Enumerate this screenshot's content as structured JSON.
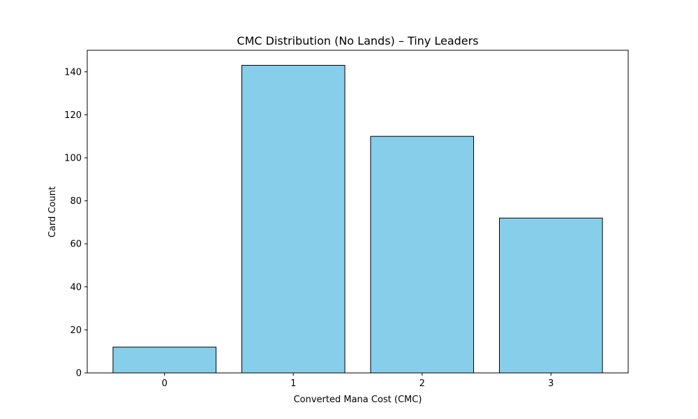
{
  "chart_data": {
    "type": "bar",
    "title": "CMC Distribution (No Lands) – Tiny Leaders",
    "xlabel": "Converted Mana Cost (CMC)",
    "ylabel": "Card Count",
    "categories": [
      "0",
      "1",
      "2",
      "3"
    ],
    "values": [
      12,
      143,
      110,
      72
    ],
    "ylim": [
      0,
      150
    ],
    "yticks": [
      0,
      20,
      40,
      60,
      80,
      100,
      120,
      140
    ],
    "grid": false,
    "legend": false,
    "colors": {
      "bar_fill": "#87CEEB",
      "bar_edge": "#000000",
      "axis": "#000000",
      "text": "#000000"
    }
  }
}
